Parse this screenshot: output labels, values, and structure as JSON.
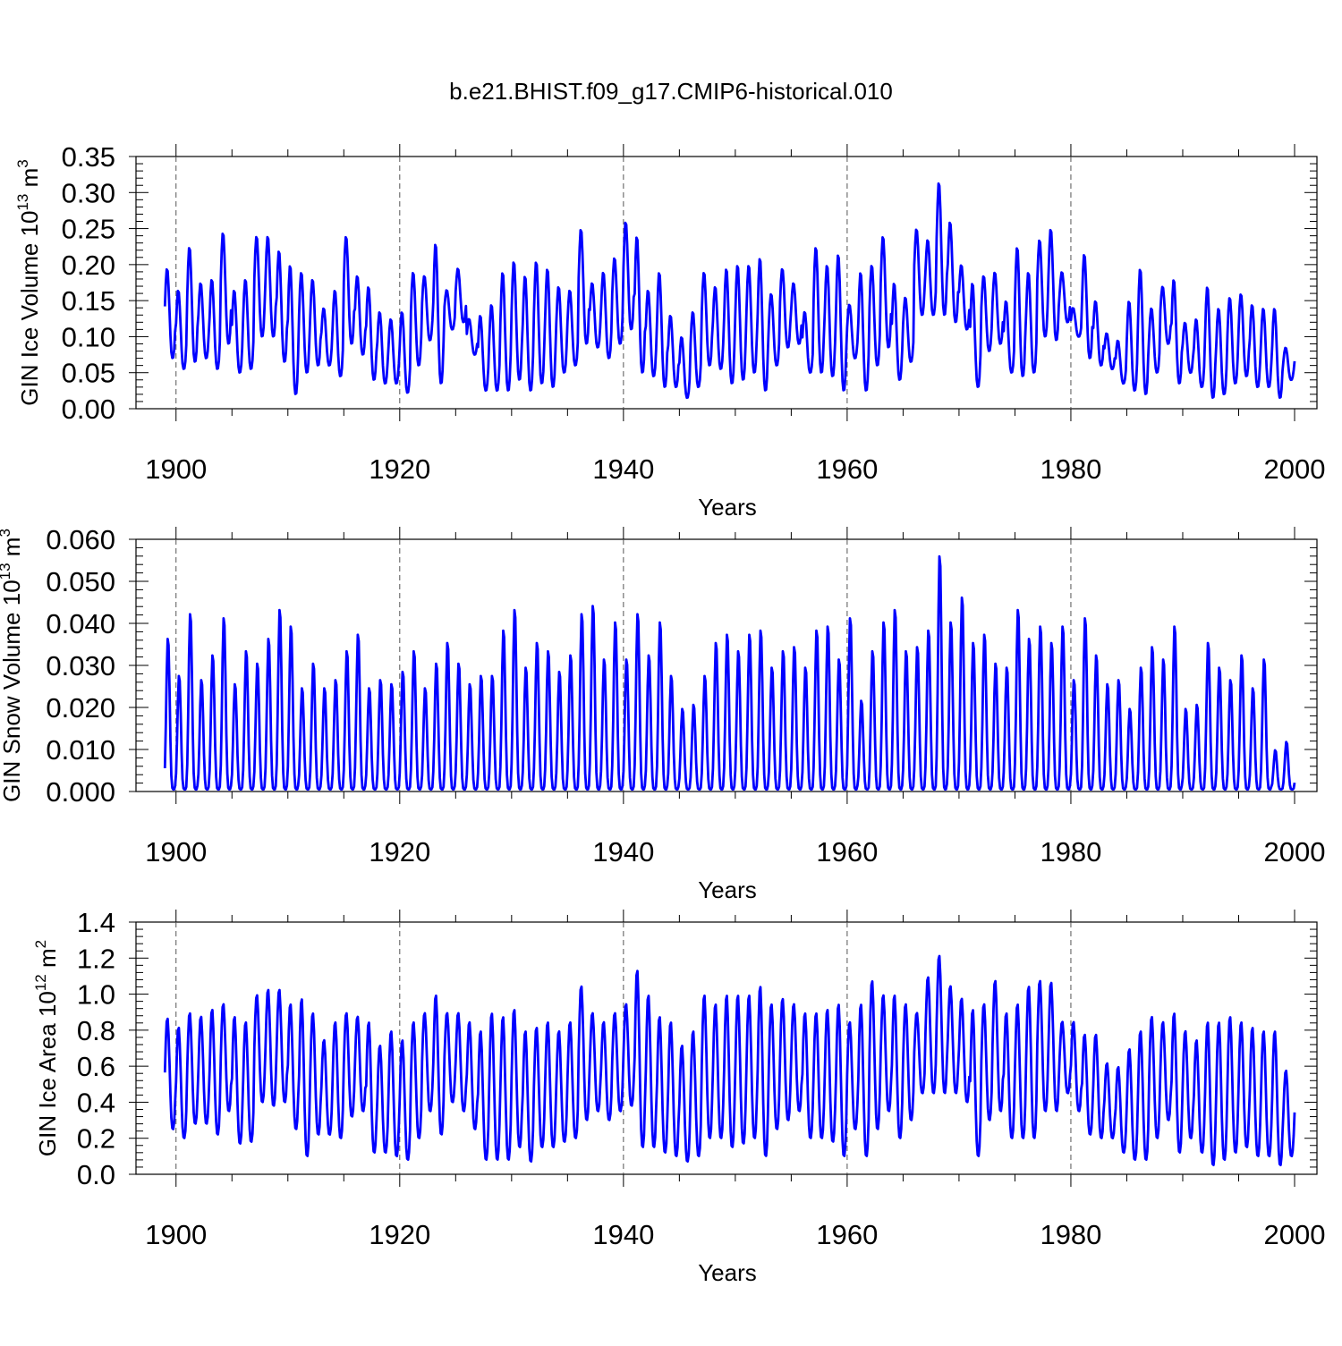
{
  "figure": {
    "title": "b.e21.BHIST.f09_g17.CMIP6-historical.010",
    "line_color": "#0000ff",
    "grid_color": "#555555"
  },
  "chart_data": [
    {
      "type": "line",
      "name": "gin-ice-volume",
      "title": "",
      "xlabel": "Years",
      "ylabel": "GIN Ice Volume 10",
      "ylabel_exp": "13",
      "ylabel_unit": " m",
      "ylabel_unit_exp": "3",
      "xlim": [
        1898.5,
        2000
      ],
      "ylim": [
        0,
        0.35
      ],
      "x_ticks": [
        1900,
        1920,
        1940,
        1960,
        1980,
        2000
      ],
      "x_tick_labels": [
        "1900",
        "1920",
        "1940",
        "1960",
        "1980",
        "2000"
      ],
      "y_ticks": [
        0,
        0.05,
        0.1,
        0.15,
        0.2,
        0.25,
        0.3,
        0.35
      ],
      "y_tick_labels": [
        "0.00",
        "0.05",
        "0.10",
        "0.15",
        "0.20",
        "0.25",
        "0.30",
        "0.35"
      ],
      "grid_x": [
        1900,
        1920,
        1940,
        1960,
        1980
      ],
      "series": [
        {
          "name": "Ice Volume",
          "x_start": 1899,
          "step": 1,
          "phase": 0.2,
          "min_annual": [
            0.07,
            0.055,
            0.065,
            0.07,
            0.055,
            0.09,
            0.05,
            0.055,
            0.1,
            0.1,
            0.065,
            0.02,
            0.05,
            0.06,
            0.06,
            0.045,
            0.09,
            0.075,
            0.04,
            0.035,
            0.035,
            0.022,
            0.06,
            0.095,
            0.035,
            0.11,
            0.12,
            0.075,
            0.025,
            0.025,
            0.025,
            0.04,
            0.025,
            0.035,
            0.03,
            0.05,
            0.06,
            0.09,
            0.085,
            0.07,
            0.09,
            0.11,
            0.05,
            0.045,
            0.03,
            0.03,
            0.015,
            0.03,
            0.06,
            0.055,
            0.035,
            0.04,
            0.05,
            0.025,
            0.06,
            0.085,
            0.09,
            0.05,
            0.05,
            0.045,
            0.025,
            0.07,
            0.025,
            0.06,
            0.085,
            0.04,
            0.065,
            0.13,
            0.13,
            0.13,
            0.12,
            0.11,
            0.03,
            0.08,
            0.09,
            0.05,
            0.045,
            0.05,
            0.1,
            0.095,
            0.12,
            0.1,
            0.07,
            0.06,
            0.055,
            0.035,
            0.025,
            0.02,
            0.05,
            0.09,
            0.035,
            0.05,
            0.03,
            0.015,
            0.02,
            0.035,
            0.045,
            0.03,
            0.03,
            0.015,
            0.04
          ],
          "max_annual": [
            0.195,
            0.165,
            0.225,
            0.175,
            0.18,
            0.245,
            0.165,
            0.18,
            0.24,
            0.24,
            0.22,
            0.2,
            0.19,
            0.18,
            0.14,
            0.165,
            0.24,
            0.185,
            0.17,
            0.135,
            0.125,
            0.135,
            0.19,
            0.185,
            0.23,
            0.165,
            0.195,
            0.125,
            0.13,
            0.145,
            0.19,
            0.205,
            0.185,
            0.205,
            0.195,
            0.17,
            0.165,
            0.25,
            0.175,
            0.19,
            0.21,
            0.26,
            0.24,
            0.165,
            0.19,
            0.13,
            0.1,
            0.135,
            0.19,
            0.17,
            0.195,
            0.2,
            0.2,
            0.21,
            0.16,
            0.195,
            0.175,
            0.135,
            0.225,
            0.2,
            0.215,
            0.145,
            0.19,
            0.2,
            0.24,
            0.175,
            0.155,
            0.25,
            0.235,
            0.315,
            0.26,
            0.2,
            0.175,
            0.185,
            0.19,
            0.15,
            0.225,
            0.19,
            0.235,
            0.25,
            0.19,
            0.14,
            0.215,
            0.15,
            0.105,
            0.095,
            0.15,
            0.195,
            0.14,
            0.17,
            0.18,
            0.12,
            0.125,
            0.17,
            0.14,
            0.155,
            0.16,
            0.145,
            0.14,
            0.14,
            0.085
          ]
        }
      ]
    },
    {
      "type": "line",
      "name": "gin-snow-volume",
      "title": "",
      "xlabel": "Years",
      "ylabel": "GIN Snow Volume 10",
      "ylabel_exp": "13",
      "ylabel_unit": " m",
      "ylabel_unit_exp": "3",
      "xlim": [
        1898.5,
        2000
      ],
      "ylim": [
        0,
        0.06
      ],
      "x_ticks": [
        1900,
        1920,
        1940,
        1960,
        1980,
        2000
      ],
      "x_tick_labels": [
        "1900",
        "1920",
        "1940",
        "1960",
        "1980",
        "2000"
      ],
      "y_ticks": [
        0,
        0.01,
        0.02,
        0.03,
        0.04,
        0.05,
        0.06
      ],
      "y_tick_labels": [
        "0.000",
        "0.010",
        "0.020",
        "0.030",
        "0.040",
        "0.050",
        "0.060"
      ],
      "grid_x": [
        1900,
        1920,
        1940,
        1960,
        1980
      ],
      "series": [
        {
          "name": "Snow Volume",
          "x_start": 1899,
          "step": 1,
          "phase": 0.28,
          "min_annual": [
            0.0005
          ],
          "max_annual": [
            0.037,
            0.028,
            0.043,
            0.027,
            0.033,
            0.042,
            0.026,
            0.034,
            0.031,
            0.037,
            0.044,
            0.04,
            0.025,
            0.031,
            0.025,
            0.027,
            0.034,
            0.038,
            0.025,
            0.027,
            0.026,
            0.029,
            0.034,
            0.025,
            0.031,
            0.036,
            0.031,
            0.026,
            0.028,
            0.028,
            0.039,
            0.044,
            0.03,
            0.036,
            0.034,
            0.029,
            0.033,
            0.043,
            0.045,
            0.032,
            0.041,
            0.032,
            0.043,
            0.033,
            0.041,
            0.028,
            0.02,
            0.021,
            0.028,
            0.036,
            0.038,
            0.034,
            0.038,
            0.039,
            0.03,
            0.034,
            0.035,
            0.03,
            0.039,
            0.04,
            0.032,
            0.042,
            0.022,
            0.034,
            0.041,
            0.044,
            0.034,
            0.035,
            0.039,
            0.057,
            0.041,
            0.047,
            0.036,
            0.038,
            0.031,
            0.03,
            0.044,
            0.037,
            0.04,
            0.036,
            0.04,
            0.027,
            0.042,
            0.033,
            0.026,
            0.027,
            0.02,
            0.03,
            0.035,
            0.032,
            0.04,
            0.02,
            0.021,
            0.036,
            0.03,
            0.027,
            0.033,
            0.025,
            0.032,
            0.01,
            0.012
          ]
        }
      ]
    },
    {
      "type": "line",
      "name": "gin-ice-area",
      "title": "",
      "xlabel": "Years",
      "ylabel": "GIN Ice Area 10",
      "ylabel_exp": "12",
      "ylabel_unit": " m",
      "ylabel_unit_exp": "2",
      "xlim": [
        1898.5,
        2000
      ],
      "ylim": [
        0,
        1.4
      ],
      "x_ticks": [
        1900,
        1920,
        1940,
        1960,
        1980,
        2000
      ],
      "x_tick_labels": [
        "1900",
        "1920",
        "1940",
        "1960",
        "1980",
        "2000"
      ],
      "y_ticks": [
        0,
        0.2,
        0.4,
        0.6,
        0.8,
        1.0,
        1.2,
        1.4
      ],
      "y_tick_labels": [
        "0.0",
        "0.2",
        "0.4",
        "0.6",
        "0.8",
        "1.0",
        "1.2",
        "1.4"
      ],
      "grid_x": [
        1900,
        1920,
        1940,
        1960,
        1980
      ],
      "series": [
        {
          "name": "Ice Area",
          "x_start": 1899,
          "step": 1,
          "phase": 0.22,
          "min_annual": [
            0.25,
            0.2,
            0.28,
            0.28,
            0.22,
            0.35,
            0.17,
            0.18,
            0.4,
            0.38,
            0.4,
            0.25,
            0.1,
            0.22,
            0.22,
            0.2,
            0.32,
            0.35,
            0.12,
            0.12,
            0.1,
            0.08,
            0.2,
            0.35,
            0.22,
            0.4,
            0.35,
            0.25,
            0.08,
            0.08,
            0.08,
            0.15,
            0.07,
            0.15,
            0.15,
            0.18,
            0.2,
            0.3,
            0.35,
            0.3,
            0.35,
            0.38,
            0.15,
            0.15,
            0.12,
            0.1,
            0.07,
            0.1,
            0.2,
            0.2,
            0.15,
            0.17,
            0.2,
            0.1,
            0.25,
            0.3,
            0.35,
            0.2,
            0.2,
            0.18,
            0.1,
            0.25,
            0.1,
            0.25,
            0.35,
            0.2,
            0.3,
            0.45,
            0.45,
            0.45,
            0.45,
            0.4,
            0.1,
            0.3,
            0.35,
            0.2,
            0.2,
            0.2,
            0.35,
            0.35,
            0.45,
            0.35,
            0.22,
            0.2,
            0.2,
            0.12,
            0.08,
            0.08,
            0.2,
            0.3,
            0.12,
            0.2,
            0.12,
            0.05,
            0.08,
            0.12,
            0.15,
            0.1,
            0.1,
            0.05,
            0.1
          ],
          "max_annual": [
            0.87,
            0.82,
            0.9,
            0.88,
            0.92,
            0.95,
            0.88,
            0.85,
            1.0,
            1.03,
            1.03,
            0.95,
            0.98,
            0.9,
            0.75,
            0.85,
            0.9,
            0.88,
            0.85,
            0.72,
            0.8,
            0.75,
            0.85,
            0.9,
            1.0,
            0.9,
            0.9,
            0.85,
            0.8,
            0.9,
            0.88,
            0.92,
            0.8,
            0.82,
            0.85,
            0.8,
            0.85,
            1.05,
            0.9,
            0.85,
            0.9,
            0.95,
            1.14,
            1.0,
            0.88,
            0.85,
            0.72,
            0.8,
            1.0,
            0.95,
            1.0,
            1.0,
            1.0,
            1.05,
            0.95,
            0.98,
            0.95,
            0.9,
            0.9,
            0.92,
            0.95,
            0.85,
            0.95,
            1.08,
            1.0,
            1.0,
            0.95,
            0.9,
            1.1,
            1.22,
            1.05,
            0.98,
            0.92,
            0.95,
            1.08,
            0.9,
            0.95,
            1.05,
            1.08,
            1.07,
            0.85,
            0.85,
            0.78,
            0.78,
            0.62,
            0.6,
            0.7,
            0.8,
            0.88,
            0.85,
            0.9,
            0.8,
            0.75,
            0.85,
            0.85,
            0.88,
            0.85,
            0.82,
            0.8,
            0.8,
            0.58
          ]
        }
      ]
    }
  ]
}
